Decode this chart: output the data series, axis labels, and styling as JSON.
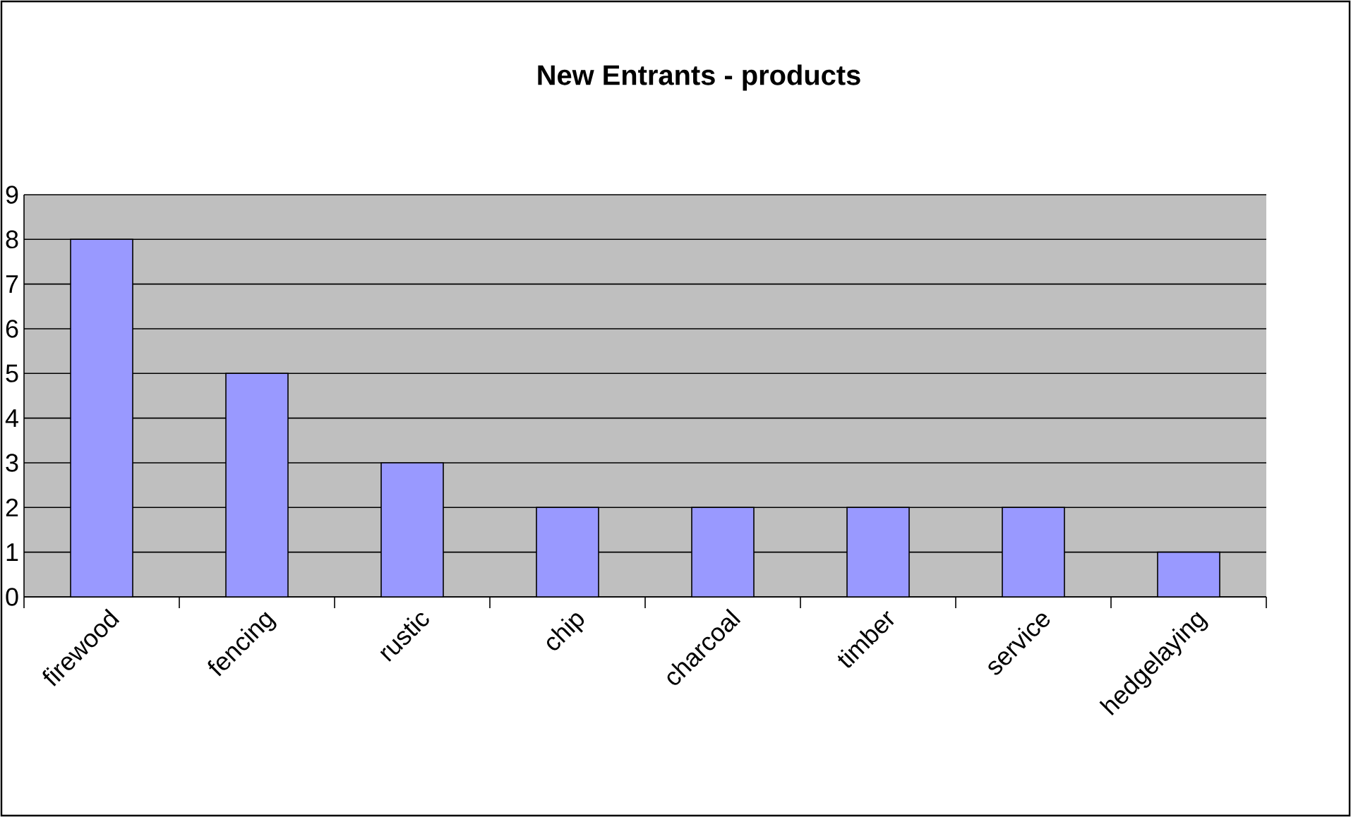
{
  "chart_data": {
    "type": "bar",
    "title": "New Entrants - products",
    "categories": [
      "firewood",
      "fencing",
      "rustic",
      "chip",
      "charcoal",
      "timber",
      "service",
      "hedgelaying"
    ],
    "values": [
      8,
      5,
      3,
      2,
      2,
      2,
      2,
      1
    ],
    "color": "#9999ff",
    "ylim": [
      0,
      9
    ],
    "yticks": [
      0,
      1,
      2,
      3,
      4,
      5,
      6,
      7,
      8,
      9
    ],
    "grid": "y"
  }
}
